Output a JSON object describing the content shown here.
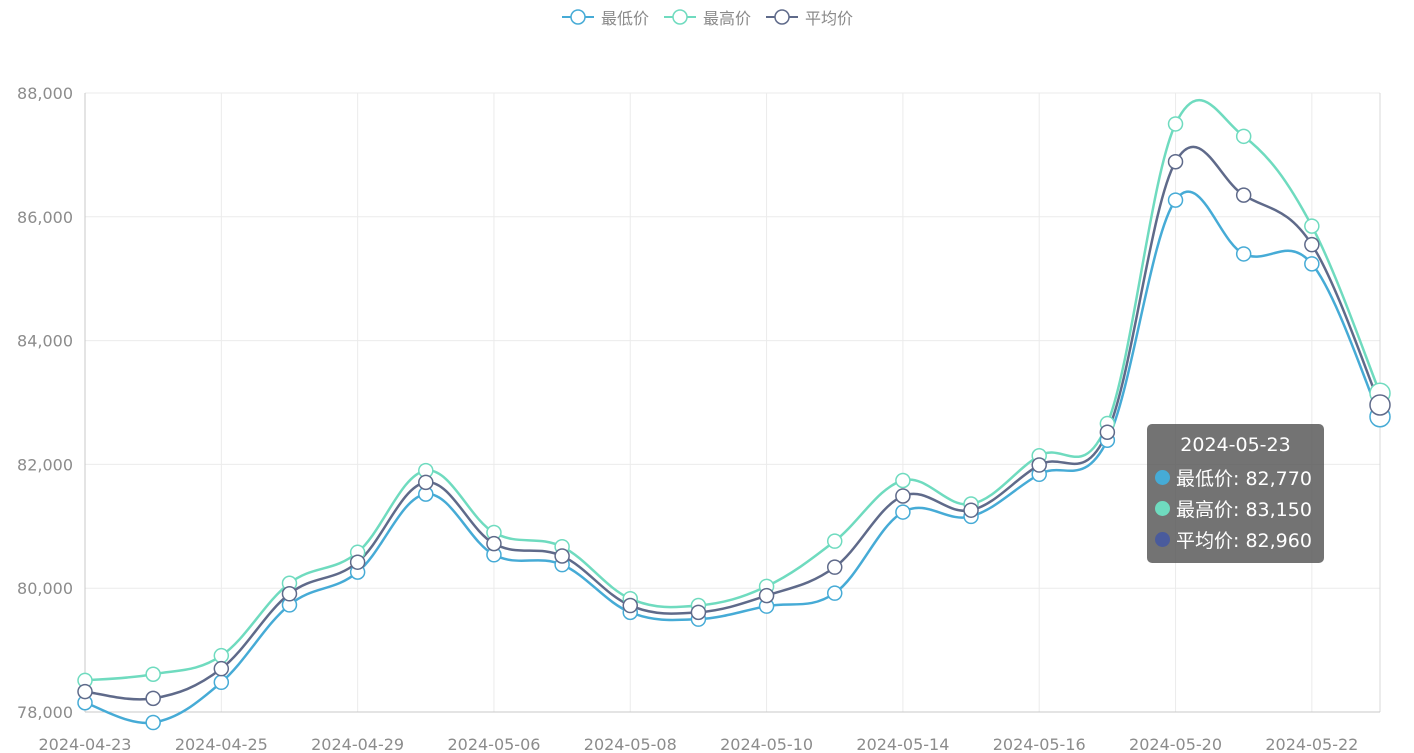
{
  "legend": [
    {
      "name": "最低价",
      "color": "#46abd6"
    },
    {
      "name": "最高价",
      "color": "#6fdbbf"
    },
    {
      "name": "平均价",
      "color": "#5f6a8a"
    }
  ],
  "tooltip": {
    "title": "2024-05-23",
    "rows": [
      {
        "label": "最低价: 82,770",
        "color": "#46abd6"
      },
      {
        "label": "最高价: 83,150",
        "color": "#6fdbbf"
      },
      {
        "label": "平均价: 82,960",
        "color": "#4a5b9c"
      }
    ]
  },
  "chart_data": {
    "type": "line",
    "smooth": true,
    "x": [
      "2024-04-23",
      "2024-04-24",
      "2024-04-25",
      "2024-04-26",
      "2024-04-29",
      "2024-04-30",
      "2024-05-06",
      "2024-05-07",
      "2024-05-08",
      "2024-05-09",
      "2024-05-10",
      "2024-05-13",
      "2024-05-14",
      "2024-05-15",
      "2024-05-16",
      "2024-05-17",
      "2024-05-20",
      "2024-05-21",
      "2024-05-22",
      "2024-05-23"
    ],
    "x_tick_labels": [
      "2024-04-23",
      "2024-04-25",
      "2024-04-29",
      "2024-05-06",
      "2024-05-08",
      "2024-05-10",
      "2024-05-14",
      "2024-05-16",
      "2024-05-20",
      "2024-05-22"
    ],
    "series": [
      {
        "name": "最低价",
        "color": "#46abd6",
        "values": [
          78150,
          77830,
          78480,
          79730,
          80260,
          81520,
          80540,
          80380,
          79610,
          79500,
          79710,
          79920,
          81230,
          81160,
          81840,
          82390,
          86270,
          85400,
          85240,
          82770
        ]
      },
      {
        "name": "最高价",
        "color": "#6fdbbf",
        "values": [
          78510,
          78610,
          78910,
          80080,
          80580,
          81900,
          80900,
          80670,
          79830,
          79720,
          80030,
          80760,
          81740,
          81360,
          82140,
          82660,
          87500,
          87300,
          85850,
          83150
        ]
      },
      {
        "name": "平均价",
        "color": "#5f6a8a",
        "values": [
          78330,
          78220,
          78700,
          79910,
          80420,
          81710,
          80720,
          80520,
          79720,
          79610,
          79880,
          80340,
          81490,
          81260,
          81990,
          82520,
          86890,
          86350,
          85550,
          82960
        ]
      }
    ],
    "ylim": [
      78000,
      88000
    ],
    "y_ticks": [
      78000,
      80000,
      82000,
      84000,
      86000,
      88000
    ],
    "y_tick_labels": [
      "78,000",
      "80,000",
      "82,000",
      "84,000",
      "86,000",
      "88,000"
    ],
    "grid": true,
    "legend_position": "top-center",
    "title": "",
    "xlabel": "",
    "ylabel": ""
  }
}
